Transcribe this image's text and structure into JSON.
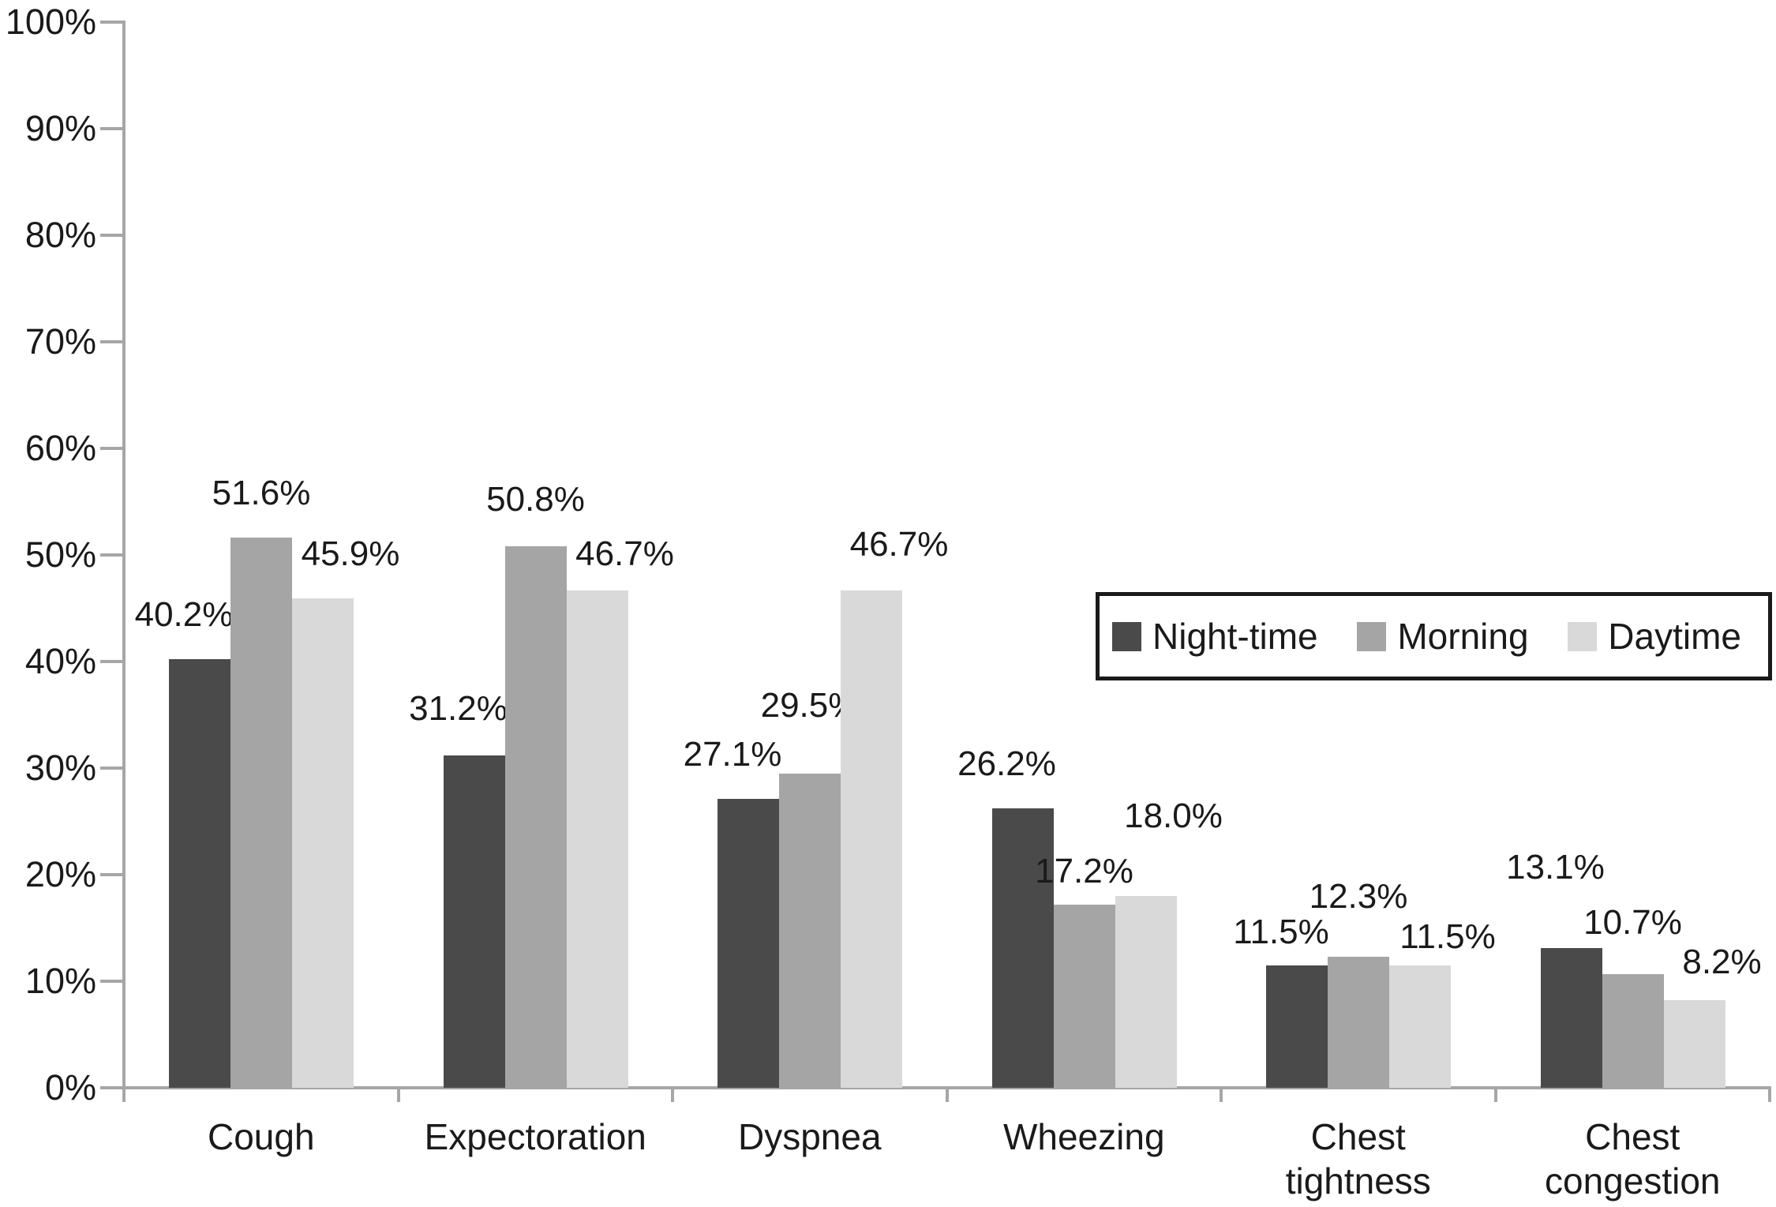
{
  "chart_data": {
    "type": "bar",
    "title": "",
    "categories": [
      "Cough",
      "Expectoration",
      "Dyspnea",
      "Wheezing",
      "Chest tightness",
      "Chest congestion"
    ],
    "series": [
      {
        "name": "Night-time",
        "color": "#4a4a4a",
        "values": [
          40.2,
          31.2,
          27.1,
          26.2,
          11.5,
          13.1
        ]
      },
      {
        "name": "Morning",
        "color": "#a5a5a5",
        "values": [
          51.6,
          50.8,
          29.5,
          17.2,
          12.3,
          10.7
        ]
      },
      {
        "name": "Daytime",
        "color": "#d9d9d9",
        "values": [
          45.9,
          46.7,
          46.7,
          18.0,
          11.5,
          8.2
        ]
      }
    ],
    "data_labels": [
      [
        "40.2%",
        "51.6%",
        "45.9%"
      ],
      [
        "31.2%",
        "50.8%",
        "46.7%"
      ],
      [
        "27.1%",
        "29.5%",
        "46.7%"
      ],
      [
        "26.2%",
        "17.2%",
        "18.0%"
      ],
      [
        "11.5%",
        "12.3%",
        "11.5%"
      ],
      [
        "13.1%",
        "10.7%",
        "8.2%"
      ]
    ],
    "y_axis": {
      "min": 0,
      "max": 100,
      "ticks": [
        "0%",
        "10%",
        "20%",
        "30%",
        "40%",
        "50%",
        "60%",
        "70%",
        "80%",
        "90%",
        "100%"
      ]
    },
    "xlabel": "",
    "ylabel": "",
    "grid": false,
    "legend": {
      "position": "middle-right",
      "items": [
        "Night-time",
        "Morning",
        "Daytime"
      ]
    },
    "axis_color": "#a6a6a6",
    "text_color": "#1a1a1a",
    "background_color": "#ffffff"
  }
}
